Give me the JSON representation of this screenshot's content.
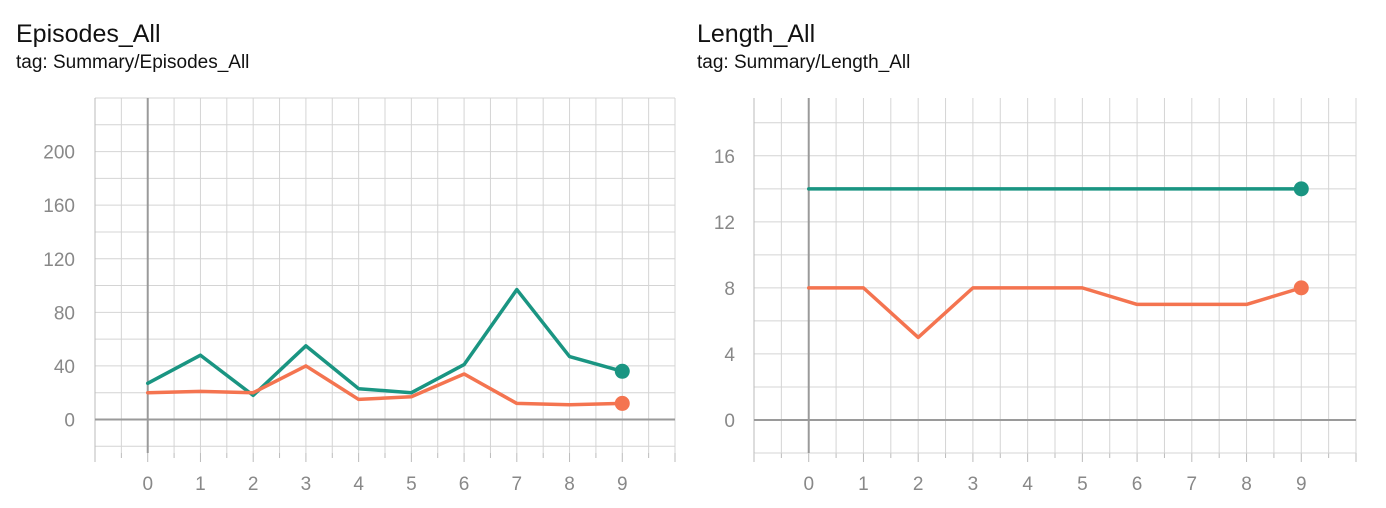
{
  "chart_data": [
    {
      "type": "line",
      "title": "Episodes_All",
      "subtitle": "tag: Summary/Episodes_All",
      "x": [
        0,
        1,
        2,
        3,
        4,
        5,
        6,
        7,
        8,
        9
      ],
      "xticks": [
        "0",
        "1",
        "2",
        "3",
        "4",
        "5",
        "6",
        "7",
        "8",
        "9"
      ],
      "xlim": [
        -1,
        10
      ],
      "ylim": [
        -25,
        240
      ],
      "yticks": [
        "0",
        "40",
        "80",
        "120",
        "160",
        "200"
      ],
      "grid": true,
      "series": [
        {
          "color": "#1a9582",
          "values": [
            27,
            48,
            18,
            55,
            23,
            20,
            41,
            97,
            47,
            36
          ]
        },
        {
          "color": "#f47450",
          "values": [
            20,
            21,
            20,
            40,
            15,
            17,
            34,
            12,
            11,
            12
          ]
        }
      ]
    },
    {
      "type": "line",
      "title": "Length_All",
      "subtitle": "tag: Summary/Length_All",
      "x": [
        0,
        1,
        2,
        3,
        4,
        5,
        6,
        7,
        8,
        9
      ],
      "xticks": [
        "0",
        "1",
        "2",
        "3",
        "4",
        "5",
        "6",
        "7",
        "8",
        "9"
      ],
      "xlim": [
        -1,
        10
      ],
      "ylim": [
        -2,
        19.5
      ],
      "yticks": [
        "0",
        "4",
        "8",
        "12",
        "16"
      ],
      "grid": true,
      "series": [
        {
          "color": "#1a9582",
          "values": [
            14,
            14,
            14,
            14,
            14,
            14,
            14,
            14,
            14,
            14
          ]
        },
        {
          "color": "#f47450",
          "values": [
            8,
            8,
            5,
            8,
            8,
            8,
            7,
            7,
            7,
            8
          ]
        }
      ]
    }
  ]
}
